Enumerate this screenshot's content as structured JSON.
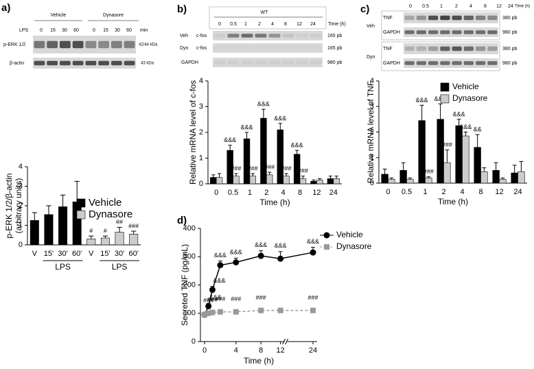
{
  "panel_letters": [
    "a)",
    "b)",
    "c)",
    "d)"
  ],
  "blots": {
    "a": {
      "groups": [
        "Vehicle",
        "Dynasore"
      ],
      "row_label": "LPS",
      "times": [
        "0",
        "15",
        "30",
        "60",
        "0",
        "15",
        "30",
        "60"
      ],
      "unit": "min",
      "lanes": [
        {
          "label": "p-ERK 1/2",
          "size": "42/44 kDa"
        },
        {
          "label": "β-actin",
          "size": "43 kDa"
        }
      ]
    },
    "b": {
      "header": "WT",
      "times": [
        "0",
        "0.5",
        "1",
        "2",
        "4",
        "8",
        "12",
        "24"
      ],
      "unit": "Time (h)",
      "lanes": [
        {
          "group": "Veh",
          "label": "c-fos",
          "size": "165 pb"
        },
        {
          "group": "Dyn",
          "label": "c-fos",
          "size": "165 pb"
        },
        {
          "label": "GAPDH",
          "size": "980 pb"
        }
      ]
    },
    "c": {
      "times": [
        "0",
        "0.5",
        "1",
        "2",
        "4",
        "8",
        "12",
        "24"
      ],
      "unit": "Time (h)",
      "groups": [
        {
          "group": "Veh",
          "lanes": [
            {
              "label": "TNF",
              "size": "380 pb"
            },
            {
              "label": "GAPDH",
              "size": "980 pb"
            }
          ]
        },
        {
          "group": "Dyn",
          "lanes": [
            {
              "label": "TNF",
              "size": "380 pb"
            },
            {
              "label": "GAPDH",
              "size": "980 pb"
            }
          ]
        }
      ]
    }
  },
  "chart_data": [
    {
      "type": "bar",
      "y_label": [
        "p-ERK 1/2/β-actin",
        "(arbitrary units)"
      ],
      "categories": [
        "V",
        "15'",
        "30'",
        "60'",
        "V",
        "15'",
        "30'",
        "60'"
      ],
      "group_labels": [
        "LPS",
        "LPS"
      ],
      "ylim": [
        0,
        4
      ],
      "yticks": [
        0,
        1,
        2,
        3,
        4
      ],
      "legend": "top-right",
      "series": [
        {
          "name": "Vehicle",
          "color": "#000000",
          "values": [
            1.25,
            1.55,
            1.95,
            2.2,
            null,
            null,
            null,
            null
          ],
          "errors": [
            0.4,
            0.45,
            0.6,
            1.05,
            null,
            null,
            null,
            null
          ],
          "annotations": [
            null,
            null,
            null,
            null,
            null,
            null,
            null,
            null
          ]
        },
        {
          "name": "Dynasore",
          "color": "#cccccc",
          "values": [
            null,
            null,
            null,
            null,
            0.3,
            0.35,
            0.65,
            0.55
          ],
          "errors": [
            null,
            null,
            null,
            null,
            0.15,
            0.1,
            0.25,
            0.15
          ],
          "annotations": [
            null,
            null,
            null,
            null,
            "#",
            "#",
            "##",
            "###"
          ]
        }
      ]
    },
    {
      "type": "bar",
      "y_label": [
        "Relative mRNA level of c-fos"
      ],
      "x_label": "Time (h)",
      "categories": [
        "0",
        "0.5",
        "1",
        "2",
        "4",
        "8",
        "12",
        "24"
      ],
      "ylim": [
        0,
        4
      ],
      "yticks": [
        0,
        1,
        2,
        3,
        4
      ],
      "series": [
        {
          "name": "Vehicle",
          "color": "#000000",
          "values": [
            0.25,
            1.3,
            1.75,
            2.55,
            2.1,
            1.15,
            0.1,
            0.2
          ],
          "errors": [
            0.1,
            0.2,
            0.25,
            0.35,
            0.25,
            0.15,
            0.05,
            0.1
          ],
          "annotations": [
            null,
            "&&&",
            "&&&",
            "&&&",
            "&&&",
            "&&&",
            null,
            null
          ]
        },
        {
          "name": "Dynasore",
          "color": "#cccccc",
          "values": [
            0.25,
            0.3,
            0.3,
            0.35,
            0.3,
            0.2,
            0.15,
            0.2
          ],
          "errors": [
            0.15,
            0.1,
            0.1,
            0.1,
            0.1,
            0.1,
            0.05,
            0.1
          ],
          "annotations": [
            null,
            "###",
            "###",
            "###",
            "###",
            "###",
            null,
            null
          ]
        }
      ]
    },
    {
      "type": "bar",
      "y_label": [
        "Relative mRNA level of TNF"
      ],
      "x_label": "Time (h)",
      "categories": [
        "0",
        "0.5",
        "1",
        "2",
        "4",
        "8",
        "12",
        "24"
      ],
      "ylim": [
        0,
        4
      ],
      "yticks": [
        0,
        1,
        2,
        3,
        4
      ],
      "legend": "top-right",
      "series": [
        {
          "name": "Vehicle",
          "color": "#000000",
          "values": [
            0.35,
            0.5,
            2.45,
            2.5,
            2.25,
            1.4,
            0.5,
            0.4
          ],
          "errors": [
            0.2,
            0.3,
            0.6,
            0.6,
            0.25,
            0.5,
            0.3,
            0.3
          ],
          "annotations": [
            null,
            null,
            "&&&",
            "&&&",
            "&&&",
            "&&",
            null,
            null
          ]
        },
        {
          "name": "Dynasore",
          "color": "#cccccc",
          "values": [
            0.15,
            0.15,
            0.2,
            0.8,
            1.85,
            0.45,
            0.15,
            0.45
          ],
          "errors": [
            0.05,
            0.05,
            0.05,
            0.5,
            0.15,
            0.15,
            0.05,
            0.4
          ],
          "annotations": [
            null,
            null,
            "###",
            "###",
            "&&&",
            null,
            null,
            null
          ]
        }
      ]
    },
    {
      "type": "line",
      "y_label": [
        "Secreted TNF (pg/mL)"
      ],
      "x_label": "Time (h)",
      "x": [
        0,
        0.5,
        1,
        2,
        4,
        8,
        12,
        24
      ],
      "xlim": [
        0,
        24
      ],
      "xticks": [
        0,
        4,
        8,
        12,
        24
      ],
      "axis_break": 12,
      "ylim": [
        0,
        400
      ],
      "yticks": [
        0,
        100,
        200,
        300,
        400
      ],
      "legend": "top-right",
      "series": [
        {
          "name": "Vehicle",
          "color": "#000000",
          "marker": "circle",
          "dashed": false,
          "values": [
            95,
            125,
            183,
            270,
            280,
            303,
            293,
            315
          ],
          "errors": [
            8,
            10,
            12,
            15,
            15,
            18,
            25,
            18
          ],
          "annotations": [
            null,
            "&&&",
            "&&&",
            "&&&",
            "&&&",
            "&&&",
            "&&&",
            "&&&"
          ]
        },
        {
          "name": "Dynasore",
          "color": "#999999",
          "marker": "square",
          "dashed": true,
          "values": [
            95,
            100,
            103,
            105,
            105,
            110,
            110,
            110
          ],
          "errors": [
            5,
            5,
            5,
            5,
            5,
            5,
            5,
            5
          ],
          "annotations": [
            null,
            "###",
            "###",
            "###",
            "###",
            "###",
            null,
            "###"
          ]
        }
      ]
    }
  ]
}
